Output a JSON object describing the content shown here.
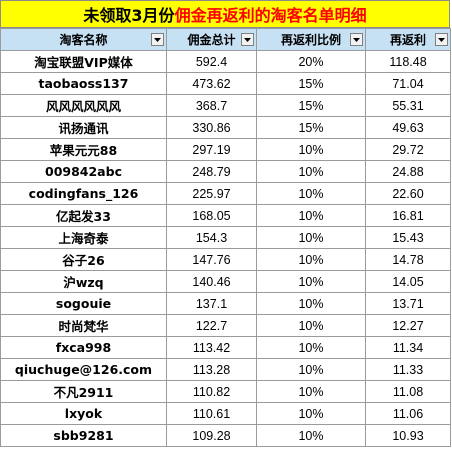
{
  "title": {
    "part1": "未领取3月份",
    "part2": "佣金再返利的淘客名单明细",
    "colors": {
      "background": "#ffff00",
      "part1": "#000000",
      "part2": "#ff0000"
    }
  },
  "header": {
    "columns": [
      "淘客名称",
      "佣金总计",
      "再返利比例",
      "再返利"
    ],
    "background": "#c6e0f4",
    "filter_icon": "dropdown-arrow-icon"
  },
  "rows": [
    {
      "name": "淘宝联盟VIP媒体",
      "total": "592.4",
      "rate": "20%",
      "rebate": "118.48"
    },
    {
      "name": "taobaoss137",
      "total": "473.62",
      "rate": "15%",
      "rebate": "71.04"
    },
    {
      "name": "风风风风风风",
      "total": "368.7",
      "rate": "15%",
      "rebate": "55.31"
    },
    {
      "name": "讯扬通讯",
      "total": "330.86",
      "rate": "15%",
      "rebate": "49.63"
    },
    {
      "name": "苹果元元88",
      "total": "297.19",
      "rate": "10%",
      "rebate": "29.72"
    },
    {
      "name": "009842abc",
      "total": "248.79",
      "rate": "10%",
      "rebate": "24.88"
    },
    {
      "name": "codingfans_126",
      "total": "225.97",
      "rate": "10%",
      "rebate": "22.60"
    },
    {
      "name": "亿起发33",
      "total": "168.05",
      "rate": "10%",
      "rebate": "16.81"
    },
    {
      "name": "上海奇泰",
      "total": "154.3",
      "rate": "10%",
      "rebate": "15.43"
    },
    {
      "name": "谷子26",
      "total": "147.76",
      "rate": "10%",
      "rebate": "14.78"
    },
    {
      "name": "沪wzq",
      "total": "140.46",
      "rate": "10%",
      "rebate": "14.05"
    },
    {
      "name": "sogouie",
      "total": "137.1",
      "rate": "10%",
      "rebate": "13.71"
    },
    {
      "name": "时尚梵华",
      "total": "122.7",
      "rate": "10%",
      "rebate": "12.27"
    },
    {
      "name": "fxca998",
      "total": "113.42",
      "rate": "10%",
      "rebate": "11.34"
    },
    {
      "name": "qiuchuge@126.com",
      "total": "113.28",
      "rate": "10%",
      "rebate": "11.33"
    },
    {
      "name": "不凡2911",
      "total": "110.82",
      "rate": "10%",
      "rebate": "11.08"
    },
    {
      "name": "lxyok",
      "total": "110.61",
      "rate": "10%",
      "rebate": "11.06"
    },
    {
      "name": "sbb9281",
      "total": "109.28",
      "rate": "10%",
      "rebate": "10.93"
    }
  ]
}
